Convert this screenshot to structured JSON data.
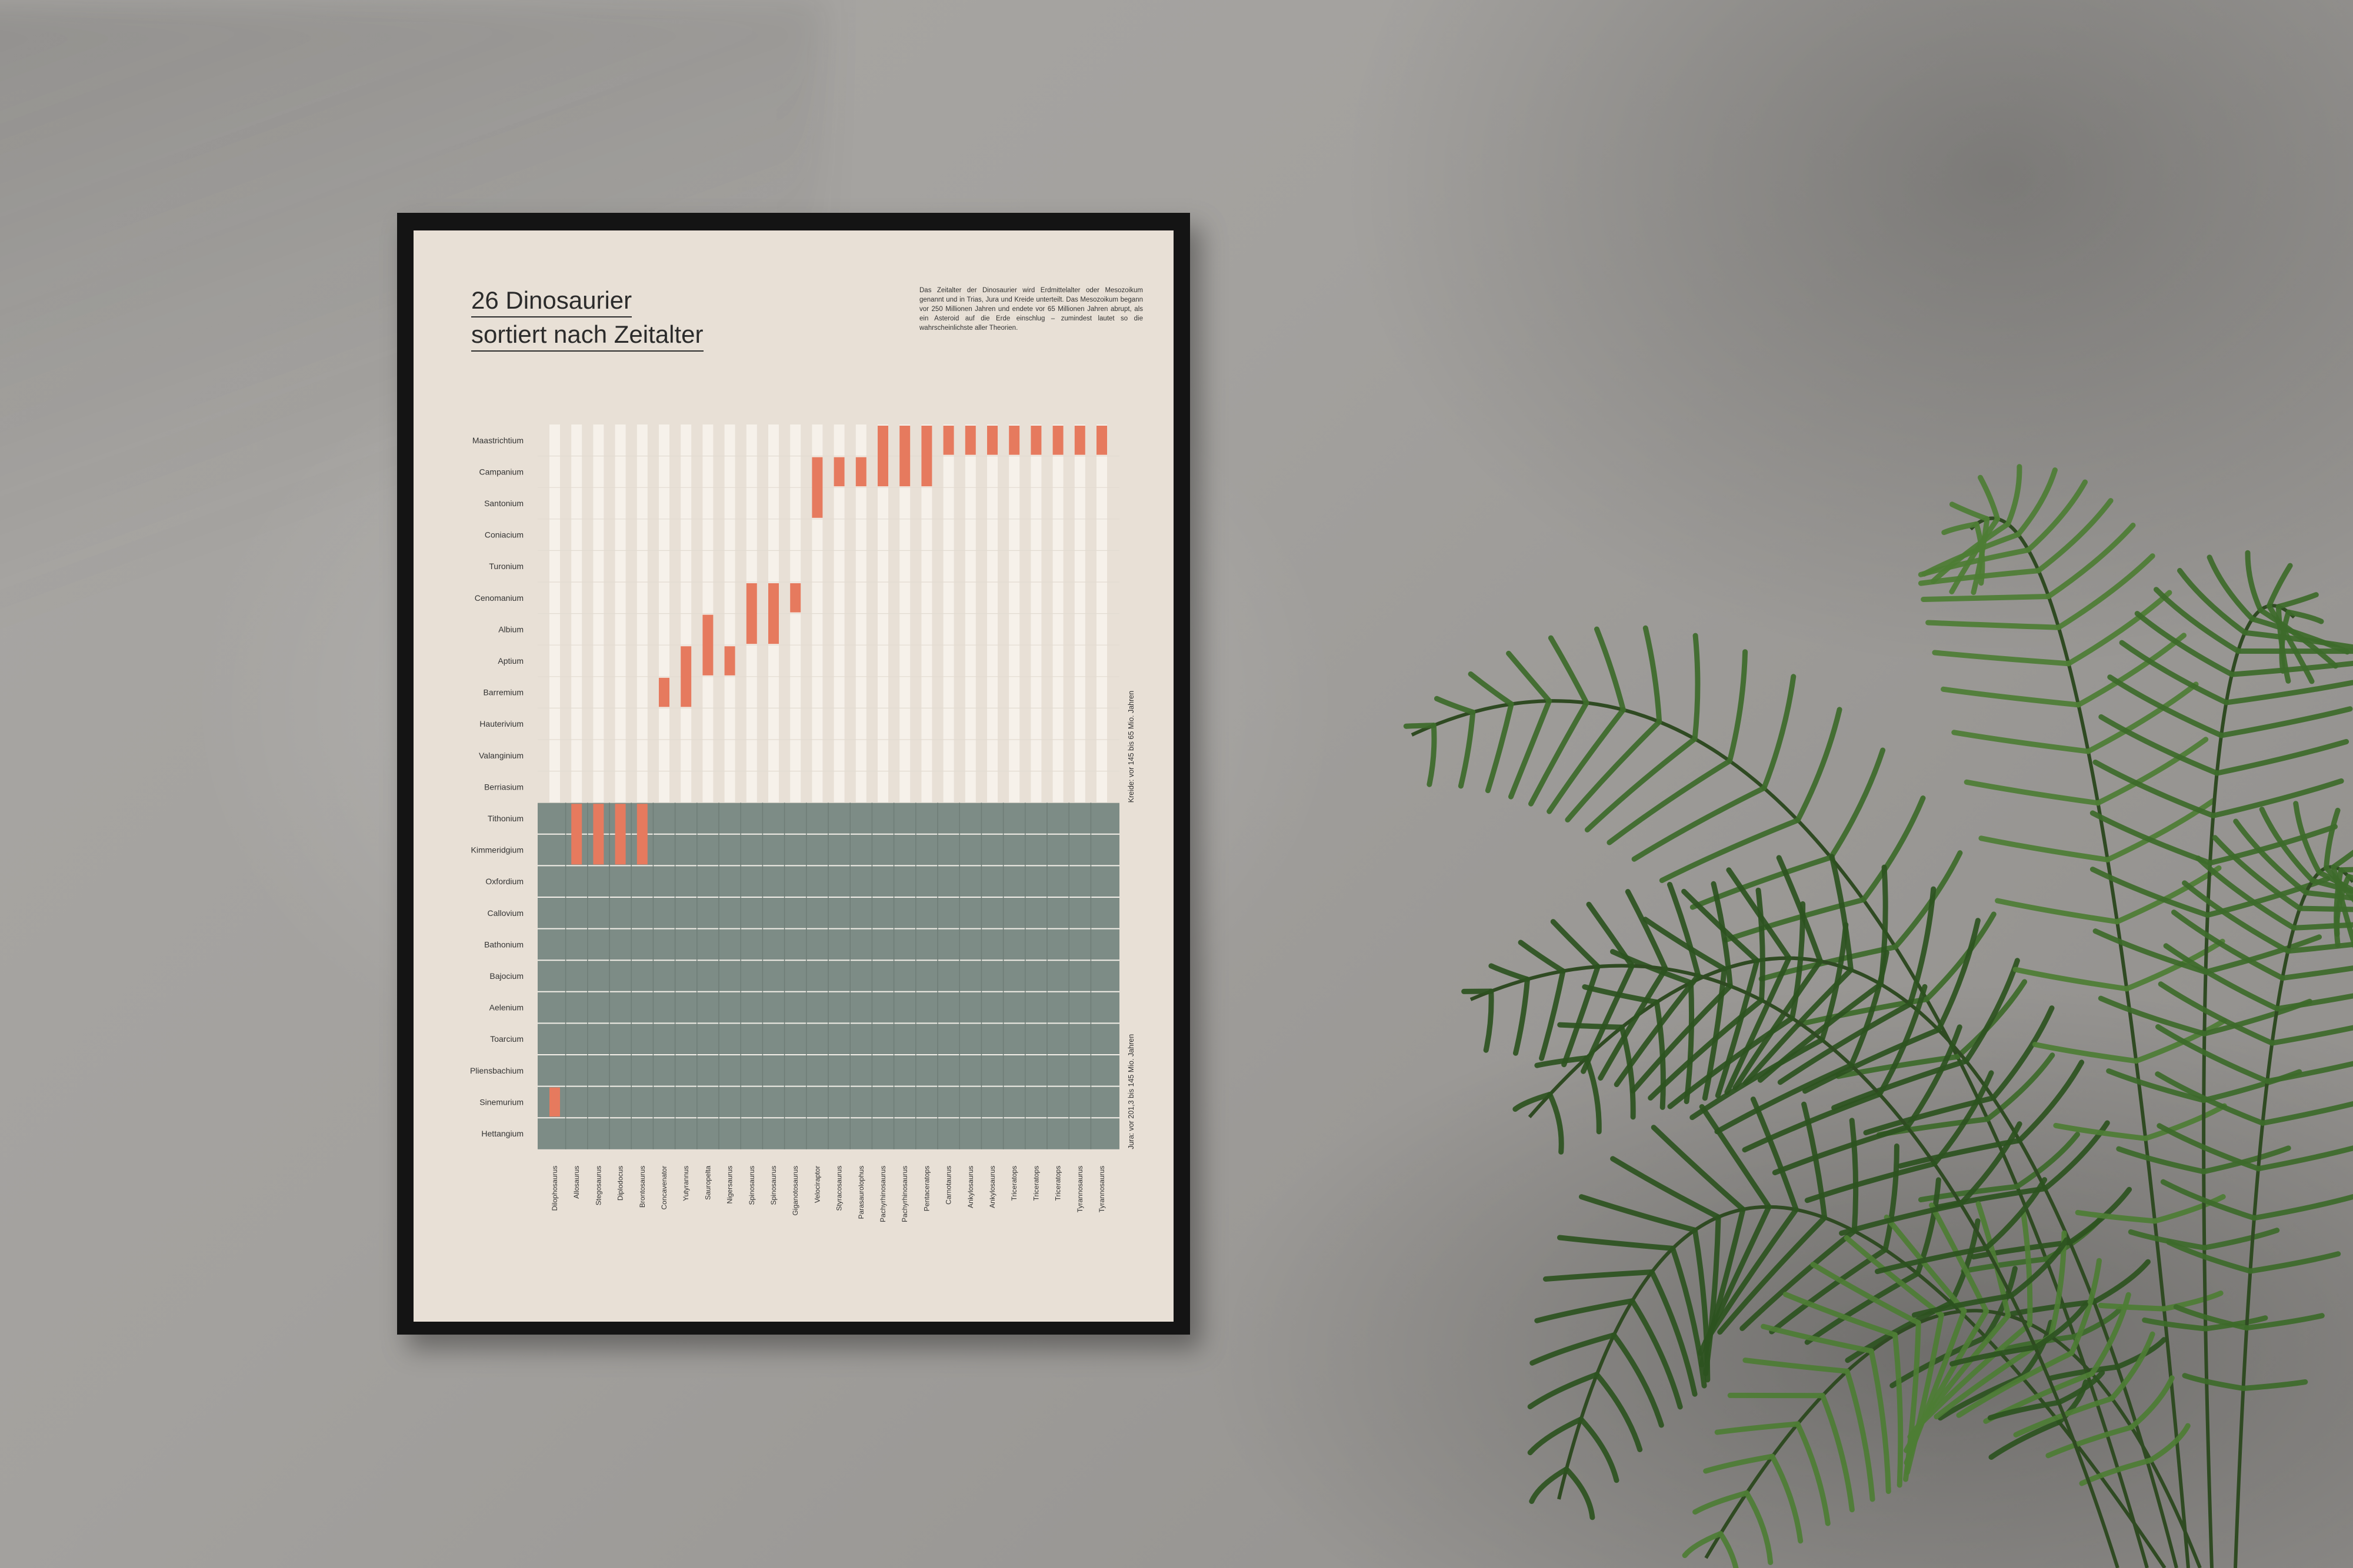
{
  "poster": {
    "title_line1": "26 Dinosaurier",
    "title_line2": "sortiert nach Zeitalter",
    "intro": "Das Zeitalter der Dinosaurier wird Erdmittelalter oder Mesozoikum genannt und in Trias, Jura und Kreide unterteilt. Das Mesozoikum begann vor 250 Millionen Jahren und endete vor 65 Millionen Jahren abrupt, als ein Asteroid auf die Erde einschlug – zumindest lautet so die wahrscheinlichste aller Theorien."
  },
  "chart_data": {
    "type": "heatmap",
    "title": "26 Dinosaurier sortiert nach Zeitalter",
    "stages": [
      "Maastrichtium",
      "Campanium",
      "Santonium",
      "Coniacium",
      "Turonium",
      "Cenomanium",
      "Albium",
      "Aptium",
      "Barremium",
      "Hauterivium",
      "Valanginium",
      "Berriasium",
      "Tithonium",
      "Kimmeridgium",
      "Oxfordium",
      "Callovium",
      "Bathonium",
      "Bajocium",
      "Aelenium",
      "Toarcium",
      "Pliensbachium",
      "Sinemurium",
      "Hettangium"
    ],
    "period_labels": [
      {
        "period": "Kreide",
        "text": "Kreide: vor 145 bis 65 Mio. Jahren",
        "stages": [
          "Maastrichtium",
          "Berriasium"
        ]
      },
      {
        "period": "Jura",
        "text": "Jura: vor 201,3 bis 145 Mio. Jahren",
        "stages": [
          "Tithonium",
          "Hettangium"
        ]
      }
    ],
    "dinosaurs": [
      {
        "name": "Dilophosaurus",
        "from": "Sinemurium",
        "to": "Sinemurium"
      },
      {
        "name": "Allosaurus",
        "from": "Kimmeridgium",
        "to": "Tithonium"
      },
      {
        "name": "Stegosaurus",
        "from": "Kimmeridgium",
        "to": "Tithonium"
      },
      {
        "name": "Diplodocus",
        "from": "Kimmeridgium",
        "to": "Tithonium"
      },
      {
        "name": "Brontosaurus",
        "from": "Kimmeridgium",
        "to": "Tithonium"
      },
      {
        "name": "Concavenator",
        "from": "Barremium",
        "to": "Barremium"
      },
      {
        "name": "Yutyrannus",
        "from": "Barremium",
        "to": "Aptium"
      },
      {
        "name": "Sauropelta",
        "from": "Aptium",
        "to": "Albium"
      },
      {
        "name": "Nigersaurus",
        "from": "Aptium",
        "to": "Aptium"
      },
      {
        "name": "Spinosaurus",
        "from": "Albium",
        "to": "Cenomanium"
      },
      {
        "name": "Spinosaurus",
        "from": "Albium",
        "to": "Cenomanium"
      },
      {
        "name": "Giganotosaurus",
        "from": "Cenomanium",
        "to": "Cenomanium"
      },
      {
        "name": "Velociraptor",
        "from": "Santonium",
        "to": "Campanium"
      },
      {
        "name": "Styracosaurus",
        "from": "Campanium",
        "to": "Campanium"
      },
      {
        "name": "Parasaurolophus",
        "from": "Campanium",
        "to": "Campanium"
      },
      {
        "name": "Pachyrhinosaurus",
        "from": "Campanium",
        "to": "Maastrichtium"
      },
      {
        "name": "Pachyrhinosaurus",
        "from": "Campanium",
        "to": "Maastrichtium"
      },
      {
        "name": "Pentaceratops",
        "from": "Campanium",
        "to": "Maastrichtium"
      },
      {
        "name": "Carnotaurus",
        "from": "Maastrichtium",
        "to": "Maastrichtium"
      },
      {
        "name": "Ankylosaurus",
        "from": "Maastrichtium",
        "to": "Maastrichtium"
      },
      {
        "name": "Ankylosaurus",
        "from": "Maastrichtium",
        "to": "Maastrichtium"
      },
      {
        "name": "Triceratops",
        "from": "Maastrichtium",
        "to": "Maastrichtium"
      },
      {
        "name": "Triceratops",
        "from": "Maastrichtium",
        "to": "Maastrichtium"
      },
      {
        "name": "Triceratops",
        "from": "Maastrichtium",
        "to": "Maastrichtium"
      },
      {
        "name": "Tyrannosaurus",
        "from": "Maastrichtium",
        "to": "Maastrichtium"
      },
      {
        "name": "Tyrannosaurus",
        "from": "Maastrichtium",
        "to": "Maastrichtium"
      }
    ],
    "colors": {
      "kreide_column": "#f6f1ea",
      "jura_column": "#7d8c86",
      "highlight": "#e67a5e",
      "poster_background": "#e8e0d6",
      "frame": "#141414"
    }
  }
}
